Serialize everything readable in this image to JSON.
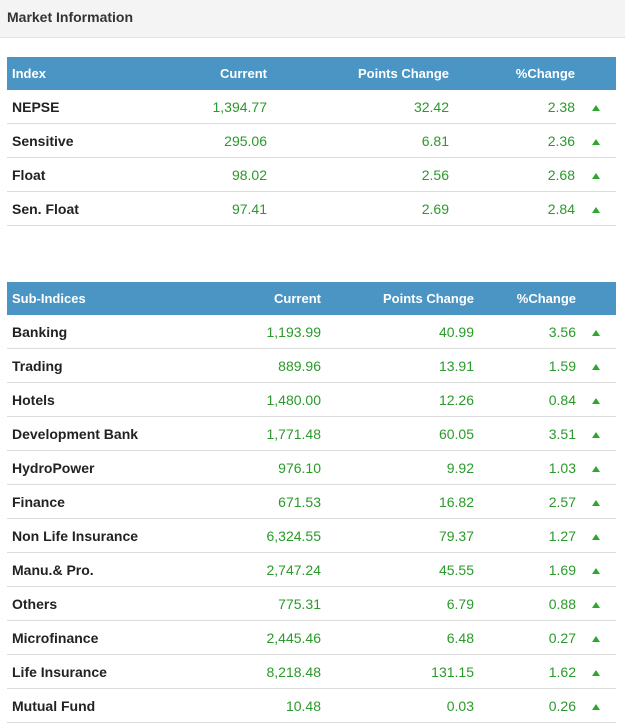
{
  "panel": {
    "title": "Market Information"
  },
  "index_table": {
    "headers": {
      "name": "Index",
      "current": "Current",
      "points": "Points Change",
      "percent": "%Change"
    },
    "rows": [
      {
        "name": "NEPSE",
        "current": "1,394.77",
        "points": "32.42",
        "percent": "2.38",
        "trend": "up"
      },
      {
        "name": "Sensitive",
        "current": "295.06",
        "points": "6.81",
        "percent": "2.36",
        "trend": "up"
      },
      {
        "name": "Float",
        "current": "98.02",
        "points": "2.56",
        "percent": "2.68",
        "trend": "up"
      },
      {
        "name": "Sen. Float",
        "current": "97.41",
        "points": "2.69",
        "percent": "2.84",
        "trend": "up"
      }
    ]
  },
  "subindex_table": {
    "headers": {
      "name": "Sub-Indices",
      "current": "Current",
      "points": "Points Change",
      "percent": "%Change"
    },
    "rows": [
      {
        "name": "Banking",
        "current": "1,193.99",
        "points": "40.99",
        "percent": "3.56",
        "trend": "up"
      },
      {
        "name": "Trading",
        "current": "889.96",
        "points": "13.91",
        "percent": "1.59",
        "trend": "up"
      },
      {
        "name": "Hotels",
        "current": "1,480.00",
        "points": "12.26",
        "percent": "0.84",
        "trend": "up"
      },
      {
        "name": "Development Bank",
        "current": "1,771.48",
        "points": "60.05",
        "percent": "3.51",
        "trend": "up"
      },
      {
        "name": "HydroPower",
        "current": "976.10",
        "points": "9.92",
        "percent": "1.03",
        "trend": "up"
      },
      {
        "name": "Finance",
        "current": "671.53",
        "points": "16.82",
        "percent": "2.57",
        "trend": "up"
      },
      {
        "name": "Non Life Insurance",
        "current": "6,324.55",
        "points": "79.37",
        "percent": "1.27",
        "trend": "up"
      },
      {
        "name": "Manu.& Pro.",
        "current": "2,747.24",
        "points": "45.55",
        "percent": "1.69",
        "trend": "up"
      },
      {
        "name": "Others",
        "current": "775.31",
        "points": "6.79",
        "percent": "0.88",
        "trend": "up"
      },
      {
        "name": "Microfinance",
        "current": "2,445.46",
        "points": "6.48",
        "percent": "0.27",
        "trend": "up"
      },
      {
        "name": "Life Insurance",
        "current": "8,218.48",
        "points": "131.15",
        "percent": "1.62",
        "trend": "up"
      },
      {
        "name": "Mutual Fund",
        "current": "10.48",
        "points": "0.03",
        "percent": "0.26",
        "trend": "up"
      }
    ]
  },
  "colors": {
    "header_bg": "#4a95c4",
    "positive": "#2a9a2a",
    "arrow_up": "#2ca82c"
  },
  "icons": {
    "trend_up": "triangle-up-icon"
  }
}
